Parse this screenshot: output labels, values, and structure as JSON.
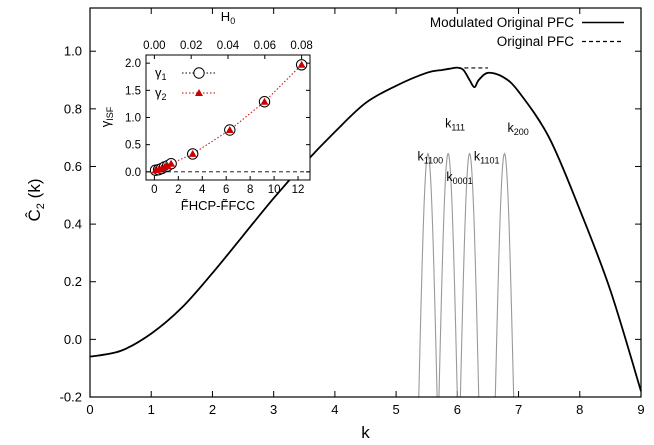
{
  "chart_data": [
    {
      "type": "line",
      "xlabel": "k",
      "ylabel_base": "C",
      "ylabel_suffix": "(k)",
      "xlim": [
        0,
        9
      ],
      "ylim": [
        -0.2,
        1.15
      ],
      "xticks": [
        "0",
        "1",
        "2",
        "3",
        "4",
        "5",
        "6",
        "7",
        "8",
        "9"
      ],
      "xtick_values": [
        0,
        1,
        2,
        3,
        4,
        5,
        6,
        7,
        8,
        9
      ],
      "yticks": [
        "-0.2",
        "0.0",
        "0.2",
        "0.4",
        "0.6",
        "0.8",
        "1.0"
      ],
      "ytick_values": [
        -0.2,
        0.0,
        0.2,
        0.4,
        0.6,
        0.8,
        1.0
      ],
      "legend_position": "top-right",
      "series": [
        {
          "name": "Modulated Original PFC",
          "style": "solid",
          "color": "#000000",
          "x": [
            0,
            0.5,
            1,
            1.5,
            2,
            2.5,
            3,
            3.5,
            4,
            4.5,
            5,
            5.5,
            5.75,
            5.9,
            6.0,
            6.1,
            6.2,
            6.28,
            6.35,
            6.5,
            6.75,
            7,
            7.5,
            8,
            8.5,
            9
          ],
          "y": [
            -0.06,
            -0.04,
            0.02,
            0.11,
            0.23,
            0.36,
            0.49,
            0.61,
            0.72,
            0.82,
            0.88,
            0.925,
            0.935,
            0.94,
            0.943,
            0.935,
            0.9,
            0.875,
            0.9,
            0.925,
            0.91,
            0.86,
            0.7,
            0.45,
            0.17,
            -0.18
          ]
        },
        {
          "name": "Original PFC",
          "style": "dashed",
          "color": "#000000",
          "x": [
            6.0,
            6.1,
            6.2,
            6.3,
            6.4,
            6.5
          ],
          "y": [
            0.942,
            0.942,
            0.942,
            0.942,
            0.942,
            0.942
          ]
        },
        {
          "name": "",
          "style": "thin",
          "color": "#999999",
          "peaks": [
            5.52,
            5.85,
            6.2,
            6.77
          ],
          "peak_height": 0.645,
          "half_width": 0.15
        }
      ],
      "annotations": [
        {
          "base": "k",
          "sub": "1100",
          "x": 5.35,
          "y": 0.62
        },
        {
          "base": "k",
          "sub": "111",
          "x": 5.8,
          "y": 0.735
        },
        {
          "base": "k",
          "sub": "0001",
          "x": 5.82,
          "y": 0.55
        },
        {
          "base": "k",
          "sub": "1101",
          "x": 6.27,
          "y": 0.62
        },
        {
          "base": "k",
          "sub": "200",
          "x": 6.82,
          "y": 0.72
        }
      ]
    },
    {
      "type": "scatter",
      "title": "H",
      "title_sub": "0",
      "xlabel": "F̃HCP-F̃FCC",
      "ylabel_base": "γ",
      "ylabel_sub": "ISF",
      "xlim": [
        -0.7,
        13
      ],
      "ylim": [
        -0.15,
        2.15
      ],
      "xticks": [
        "0",
        "2",
        "4",
        "6",
        "8",
        "10",
        "12"
      ],
      "xtick_values": [
        0,
        2,
        4,
        6,
        8,
        10,
        12
      ],
      "top_ticks": [
        "0.00",
        "0.02",
        "0.04",
        "0.06",
        "0.08"
      ],
      "top_tick_values": [
        0,
        3.075,
        6.15,
        9.225,
        12.3
      ],
      "yticks": [
        "0.0",
        "0.5",
        "1.0",
        "1.5",
        "2.0"
      ],
      "ytick_values": [
        0,
        0.5,
        1.0,
        1.5,
        2.0
      ],
      "legend_position": "top-left",
      "series": [
        {
          "name": "γ1",
          "marker": "open-circle",
          "color": "#000000",
          "x": [
            0.1,
            0.35,
            0.6,
            0.85,
            1.1,
            1.4,
            3.2,
            6.3,
            9.2,
            12.3
          ],
          "y": [
            0.03,
            0.04,
            0.06,
            0.09,
            0.11,
            0.15,
            0.33,
            0.77,
            1.29,
            1.97
          ]
        },
        {
          "name": "γ2",
          "marker": "filled-triangle",
          "color": "#cc0000",
          "x": [
            0.1,
            0.35,
            0.6,
            0.85,
            1.1,
            1.4,
            3.2,
            6.3,
            9.2,
            12.3
          ],
          "y": [
            0.03,
            0.04,
            0.06,
            0.09,
            0.11,
            0.15,
            0.33,
            0.77,
            1.29,
            1.97
          ]
        }
      ]
    }
  ]
}
